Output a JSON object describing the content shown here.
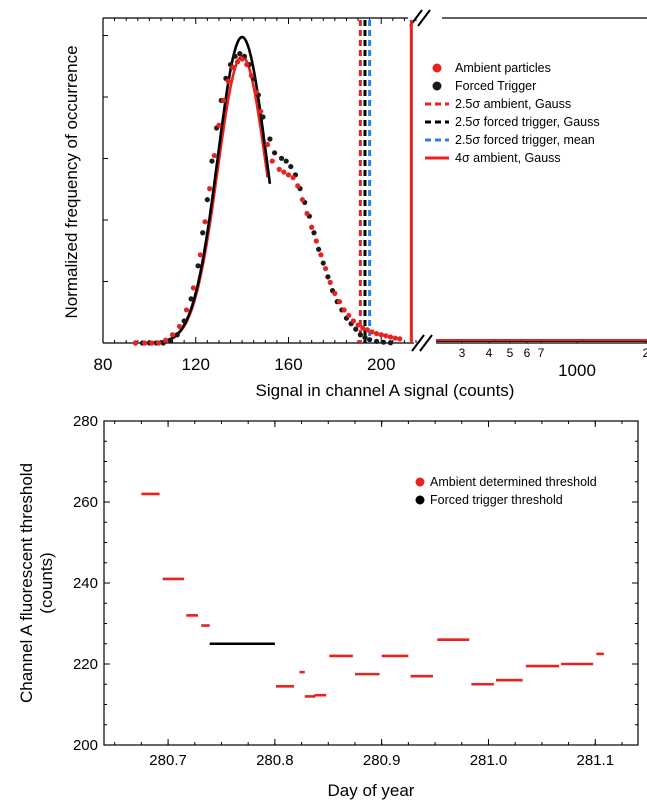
{
  "chart_data": [
    {
      "type": "scatter",
      "panel": "top",
      "xlabel": "Signal in channel A signal (counts)",
      "ylabel": "Normalized frequency of occurrence",
      "xlim": [
        80,
        215
      ],
      "ylim": [
        0,
        1.15
      ],
      "x_ticks": [
        "80",
        "120",
        "160",
        "200"
      ],
      "x_ticks_right": [
        "3",
        "4",
        "5",
        "6",
        "7",
        "1000",
        "2"
      ],
      "legend_position": "top-right",
      "series": [
        {
          "name": "Ambient particles",
          "marker": "dot",
          "color": "#e8231f",
          "points": [
            [
              94,
              0
            ],
            [
              98,
              0
            ],
            [
              101,
              0
            ],
            [
              104,
              0
            ],
            [
              107,
              0.01
            ],
            [
              110,
              0.03
            ],
            [
              113,
              0.06
            ],
            [
              116,
              0.12
            ],
            [
              119,
              0.2
            ],
            [
              122,
              0.32
            ],
            [
              124,
              0.44
            ],
            [
              126,
              0.56
            ],
            [
              128,
              0.68
            ],
            [
              130,
              0.79
            ],
            [
              132,
              0.88
            ],
            [
              134,
              0.95
            ],
            [
              136,
              1.0
            ],
            [
              138,
              1.02
            ],
            [
              140,
              1.03
            ],
            [
              142,
              1.01
            ],
            [
              144,
              0.97
            ],
            [
              146,
              0.91
            ],
            [
              148,
              0.84
            ],
            [
              151,
              0.72
            ],
            [
              153,
              0.66
            ],
            [
              156,
              0.63
            ],
            [
              158,
              0.62
            ],
            [
              160,
              0.61
            ],
            [
              162,
              0.6
            ],
            [
              164,
              0.57
            ],
            [
              166,
              0.52
            ],
            [
              168,
              0.47
            ],
            [
              170,
              0.42
            ],
            [
              172,
              0.37
            ],
            [
              174,
              0.32
            ],
            [
              176,
              0.27
            ],
            [
              178,
              0.22
            ],
            [
              180,
              0.18
            ],
            [
              182,
              0.15
            ],
            [
              184,
              0.12
            ],
            [
              186,
              0.1
            ],
            [
              188,
              0.08
            ],
            [
              190,
              0.065
            ],
            [
              192,
              0.055
            ],
            [
              194,
              0.048
            ],
            [
              196,
              0.04
            ],
            [
              198,
              0.034
            ],
            [
              200,
              0.03
            ],
            [
              202,
              0.026
            ],
            [
              204,
              0.022
            ],
            [
              206,
              0.018
            ],
            [
              208,
              0.015
            ]
          ]
        },
        {
          "name": "Forced Trigger",
          "marker": "dot",
          "color": "#1a1a1a",
          "points": [
            [
              94,
              0
            ],
            [
              97,
              0
            ],
            [
              100,
              0
            ],
            [
              103,
              0
            ],
            [
              106,
              0
            ],
            [
              109,
              0.01
            ],
            [
              112,
              0.03
            ],
            [
              115,
              0.08
            ],
            [
              118,
              0.16
            ],
            [
              121,
              0.28
            ],
            [
              123,
              0.4
            ],
            [
              125,
              0.52
            ],
            [
              127,
              0.66
            ],
            [
              129,
              0.78
            ],
            [
              131,
              0.88
            ],
            [
              133,
              0.96
            ],
            [
              135,
              1.01
            ],
            [
              137,
              1.04
            ],
            [
              139,
              1.05
            ],
            [
              141,
              1.04
            ],
            [
              143,
              1.01
            ],
            [
              145,
              0.96
            ],
            [
              147,
              0.9
            ],
            [
              149,
              0.82
            ],
            [
              152,
              0.74
            ],
            [
              154,
              0.69
            ],
            [
              157,
              0.67
            ],
            [
              159,
              0.66
            ],
            [
              161,
              0.64
            ],
            [
              163,
              0.61
            ],
            [
              165,
              0.56
            ],
            [
              167,
              0.51
            ],
            [
              169,
              0.46
            ],
            [
              171,
              0.4
            ],
            [
              173,
              0.34
            ],
            [
              175,
              0.29
            ],
            [
              177,
              0.24
            ],
            [
              179,
              0.19
            ],
            [
              181,
              0.15
            ],
            [
              183,
              0.12
            ],
            [
              185,
              0.09
            ],
            [
              187,
              0.07
            ],
            [
              189,
              0.05
            ],
            [
              191,
              0.03
            ],
            [
              193,
              0.02
            ],
            [
              195,
              0.012
            ],
            [
              198,
              0.006
            ],
            [
              201,
              0.003
            ],
            [
              204,
              0.001
            ]
          ]
        }
      ],
      "curves": [
        {
          "name": "Gauss fit ambient",
          "color": "#e8231f",
          "mu": 140,
          "sigma": 10.5,
          "amp": 1.04,
          "x_range": [
            100,
            151
          ]
        },
        {
          "name": "Gauss fit forced trigger",
          "color": "#000000",
          "mu": 140,
          "sigma": 10.5,
          "amp": 1.11,
          "x_range": [
            100,
            152
          ]
        }
      ],
      "vertical_lines": [
        {
          "name": "2.5σ ambient, Gauss",
          "x": 191,
          "color": "#e8231f",
          "style": "dashed"
        },
        {
          "name": "2.5σ forced trigger, Gauss",
          "x": 193,
          "color": "#000000",
          "style": "dashed"
        },
        {
          "name": "2.5σ forced trigger, mean",
          "x": 195,
          "color": "#2f7fe0",
          "style": "dashed"
        },
        {
          "name": "4σ ambient, Gauss",
          "x": 213,
          "color": "#e8231f",
          "style": "solid"
        }
      ]
    },
    {
      "type": "line",
      "panel": "bottom",
      "xlabel": "Day of year",
      "ylabel": "Channel A fluorescent threshold (counts)",
      "ylabel_lines": [
        "Channel A fluorescent threshold",
        "(counts)"
      ],
      "xlim": [
        280.64,
        281.14
      ],
      "ylim": [
        200,
        280
      ],
      "x_ticks": [
        280.7,
        280.8,
        280.9,
        281.0,
        281.1
      ],
      "x_tick_labels": [
        "280.7",
        "280.8",
        "280.9",
        "281.0",
        "281.1"
      ],
      "y_ticks": [
        200,
        220,
        240,
        260,
        280
      ],
      "y_tick_labels": [
        "200",
        "220",
        "240",
        "260",
        "280"
      ],
      "legend_position": "top-right",
      "series": [
        {
          "name": "Ambient determined threshold",
          "color": "#e8231f",
          "segments": [
            [
              280.675,
              280.692,
              262
            ],
            [
              280.695,
              280.715,
              241
            ],
            [
              280.717,
              280.728,
              232
            ],
            [
              280.731,
              280.739,
              229.5
            ],
            [
              280.801,
              280.818,
              214.5
            ],
            [
              280.823,
              280.828,
              218
            ],
            [
              280.828,
              280.838,
              212
            ],
            [
              280.837,
              280.848,
              212.3
            ],
            [
              280.851,
              280.873,
              222
            ],
            [
              280.875,
              280.898,
              217.5
            ],
            [
              280.9,
              280.925,
              222
            ],
            [
              280.927,
              280.948,
              217
            ],
            [
              280.952,
              280.982,
              226
            ],
            [
              280.984,
              281.005,
              215
            ],
            [
              281.007,
              281.032,
              216
            ],
            [
              281.035,
              281.066,
              219.5
            ],
            [
              281.068,
              281.098,
              220
            ],
            [
              281.101,
              281.108,
              222.5
            ]
          ]
        },
        {
          "name": "Forced trigger threshold",
          "color": "#000000",
          "segments": [
            [
              280.739,
              280.8,
              225
            ]
          ]
        }
      ]
    }
  ]
}
